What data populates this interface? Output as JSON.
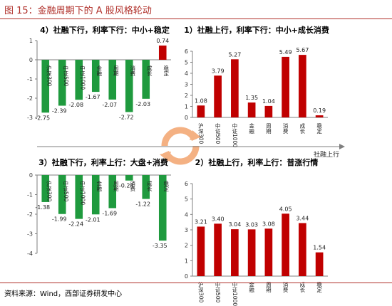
{
  "figure_title": "图 15：金融周期下的 A 股风格轮动",
  "source_note": "资料来源：Wind，西部证券研发中心",
  "colors": {
    "title": "#b0302a",
    "bar_green": "#1f9a3e",
    "bar_red": "#c00000",
    "axis": "#7f7f7f",
    "cycle_arrow": "#f4b183"
  },
  "center_axis_label": "社融上行",
  "chart_data": [
    {
      "id": "q4",
      "type": "bar",
      "title": "4）社融下行，利率下行：中小+稳定",
      "categories": [
        "沪深300",
        "中证500",
        "中证1000",
        "金融",
        "周期",
        "消费",
        "成长",
        "稳定"
      ],
      "values": [
        -2.75,
        -2.39,
        -2.08,
        -1.67,
        -2.07,
        -2.72,
        -2.03,
        0.74
      ],
      "value_labels": [
        "-2.75",
        "-2.39",
        "-2.08",
        "-1.67",
        "-2.07",
        "-2.72",
        "-2.03",
        "0.74"
      ],
      "bar_colors": [
        "#1f9a3e",
        "#1f9a3e",
        "#1f9a3e",
        "#1f9a3e",
        "#1f9a3e",
        "#1f9a3e",
        "#1f9a3e",
        "#c00000"
      ],
      "ylim": [
        -3,
        1
      ],
      "yticks": [
        1,
        0,
        -1,
        -2,
        -3
      ],
      "ytick_labels": [
        "1",
        "0",
        "-1",
        "-2",
        "-3"
      ]
    },
    {
      "id": "q1",
      "type": "bar",
      "title": "1）社融上行，利率下行：中小+成长消费",
      "categories": [
        "沪深300",
        "中证500",
        "中证1000",
        "金融",
        "周期",
        "消费",
        "成长",
        "稳定"
      ],
      "values": [
        1.08,
        3.79,
        5.27,
        1.35,
        1.04,
        5.49,
        5.67,
        0.19
      ],
      "value_labels": [
        "1.08",
        "3.79",
        "5.27",
        "1.35",
        "1.04",
        "5.49",
        "5.67",
        "0.19"
      ],
      "bar_colors": [
        "#c00000",
        "#c00000",
        "#c00000",
        "#c00000",
        "#c00000",
        "#c00000",
        "#c00000",
        "#c00000"
      ],
      "ylim": [
        0,
        6
      ],
      "yticks": [
        6,
        5,
        4,
        3,
        2,
        1,
        0
      ],
      "ytick_labels": [
        "6",
        "5",
        "4",
        "3",
        "2",
        "1",
        "0"
      ]
    },
    {
      "id": "q3",
      "type": "bar",
      "title": "3）社融下行，利率上行：大盘+消费",
      "categories": [
        "沪深300",
        "中证500",
        "中证1000",
        "金融",
        "周期",
        "消费",
        "成长",
        "稳定"
      ],
      "values": [
        -1.38,
        -1.99,
        -2.24,
        -2.01,
        -1.69,
        -0.28,
        -1.22,
        -3.35
      ],
      "value_labels": [
        "-1.38",
        "-1.99",
        "-2.24",
        "-2.01",
        "-1.69",
        "-0.28",
        "-1.22",
        "-3.35"
      ],
      "bar_colors": [
        "#1f9a3e",
        "#1f9a3e",
        "#1f9a3e",
        "#1f9a3e",
        "#1f9a3e",
        "#1f9a3e",
        "#1f9a3e",
        "#1f9a3e"
      ],
      "ylim": [
        -4,
        0
      ],
      "yticks": [
        0,
        -1,
        -2,
        -3,
        -4
      ],
      "ytick_labels": [
        "0",
        "-1",
        "-2",
        "-3",
        "-4"
      ]
    },
    {
      "id": "q2",
      "type": "bar",
      "title": "2）社融上行，利率上行：普涨行情",
      "categories": [
        "沪深300",
        "中证500",
        "中证1000",
        "金融",
        "周期",
        "消费",
        "成长",
        "稳定"
      ],
      "values": [
        3.21,
        3.4,
        3.04,
        3.03,
        3.08,
        4.05,
        3.44,
        1.54
      ],
      "value_labels": [
        "3.21",
        "3.40",
        "3.04",
        "3.03",
        "3.08",
        "4.05",
        "3.44",
        "1.54"
      ],
      "bar_colors": [
        "#c00000",
        "#c00000",
        "#c00000",
        "#c00000",
        "#c00000",
        "#c00000",
        "#c00000",
        "#c00000"
      ],
      "ylim": [
        0,
        6
      ],
      "yticks": [
        6,
        5,
        4,
        3,
        2,
        1,
        0
      ],
      "ytick_labels": [
        "6",
        "5",
        "4",
        "3",
        "2",
        "1",
        "0"
      ]
    }
  ]
}
